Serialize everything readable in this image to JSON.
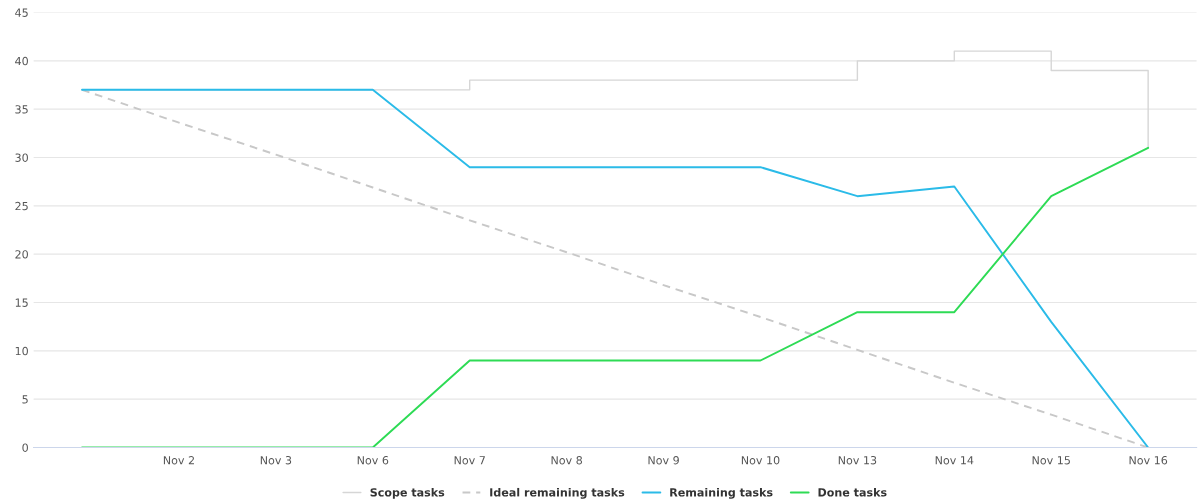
{
  "chart_data": {
    "type": "line",
    "categories": [
      null,
      "Nov 2",
      "Nov 3",
      "Nov 6",
      "Nov 7",
      "Nov 8",
      "Nov 9",
      "Nov 10",
      "Nov 13",
      "Nov 14",
      "Nov 15",
      "Nov 16"
    ],
    "series": [
      {
        "name": "Scope tasks",
        "type": "step",
        "color": "#d6d6d6",
        "line_style": "solid",
        "values": [
          37,
          37,
          37,
          37,
          38,
          38,
          38,
          38,
          40,
          41,
          39,
          31
        ]
      },
      {
        "name": "Ideal remaining tasks",
        "color": "#c8c8c8",
        "line_style": "dashed",
        "values": [
          37,
          33.6,
          30.3,
          26.9,
          23.5,
          20.2,
          16.8,
          13.5,
          10.1,
          6.7,
          3.4,
          0
        ]
      },
      {
        "name": "Remaining tasks",
        "color": "#2bbbe8",
        "line_style": "solid",
        "values": [
          37,
          37,
          37,
          37,
          29,
          29,
          29,
          29,
          26,
          27,
          13,
          0
        ]
      },
      {
        "name": "Done tasks",
        "color": "#2edb55",
        "line_style": "solid",
        "values": [
          0,
          0,
          0,
          0,
          9,
          9,
          9,
          9,
          14,
          14,
          26,
          31
        ]
      }
    ],
    "ylim": [
      0,
      45
    ],
    "yticks": [
      0,
      5,
      10,
      15,
      20,
      25,
      30,
      35,
      40,
      45
    ],
    "grid": "y",
    "legend": "bottom",
    "marker": "none"
  }
}
